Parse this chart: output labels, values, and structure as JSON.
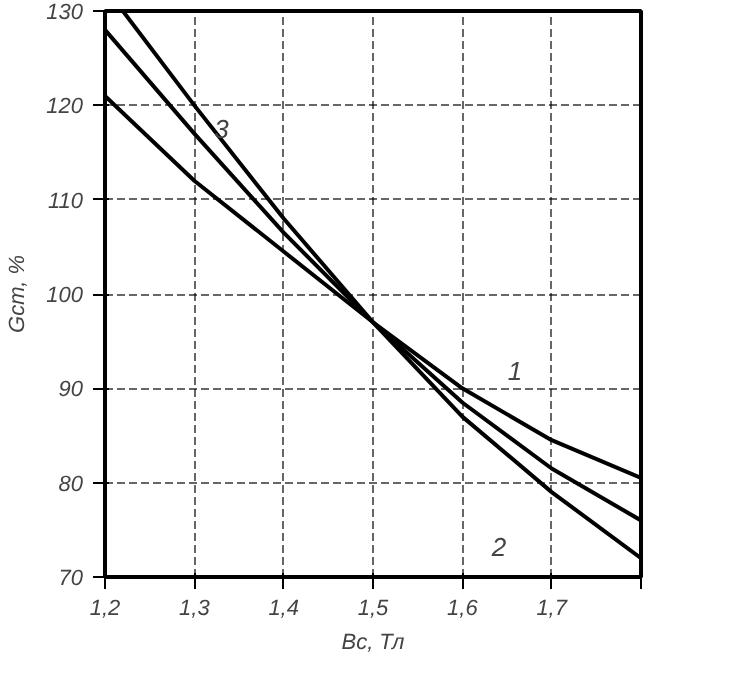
{
  "chart_data": {
    "type": "line",
    "xlabel": "Bс, Тл",
    "ylabel": "Gст, %",
    "xlim": [
      1.2,
      1.8
    ],
    "ylim": [
      70,
      130
    ],
    "xticks": [
      {
        "value": 1.2,
        "label": "1,2"
      },
      {
        "value": 1.3,
        "label": "1,3"
      },
      {
        "value": 1.4,
        "label": "1,4"
      },
      {
        "value": 1.5,
        "label": "1,5"
      },
      {
        "value": 1.6,
        "label": "1,6"
      },
      {
        "value": 1.7,
        "label": "1,7"
      },
      {
        "value": 1.8,
        "label": null
      }
    ],
    "yticks": [
      70,
      80,
      90,
      100,
      110,
      120,
      130
    ],
    "grid": true,
    "marker": "none",
    "line_style": "solid",
    "series": [
      {
        "name": "1",
        "color": "#000000",
        "x": [
          1.2,
          1.3,
          1.4,
          1.5,
          1.6,
          1.7,
          1.8
        ],
        "values": [
          121,
          112,
          104.5,
          97,
          90,
          84.5,
          80.5
        ]
      },
      {
        "name": "2",
        "color": "#000000",
        "x": [
          1.22,
          1.3,
          1.4,
          1.5,
          1.6,
          1.7,
          1.8
        ],
        "values": [
          130,
          120,
          108,
          97,
          87,
          79,
          72
        ]
      },
      {
        "name": "3",
        "color": "#000000",
        "x": [
          1.2,
          1.3,
          1.4,
          1.5,
          1.6,
          1.7,
          1.8
        ],
        "values": [
          128,
          117,
          106.5,
          97,
          88.5,
          81.5,
          76
        ]
      }
    ]
  }
}
